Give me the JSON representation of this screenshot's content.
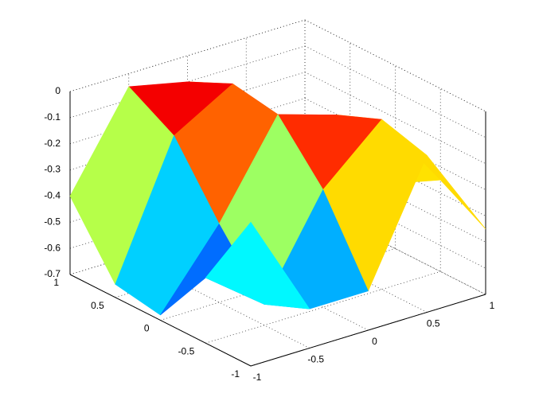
{
  "chart_data": {
    "type": "surface",
    "x": [
      -1,
      -0.5,
      0,
      0.5,
      1
    ],
    "y": [
      1,
      0.5,
      0,
      -0.5,
      -1
    ],
    "z": [
      [
        -0.4,
        -0.05,
        -0.1,
        -0.45,
        -0.65
      ],
      [
        -0.65,
        -0.15,
        -0.02,
        -0.3,
        -0.6
      ],
      [
        -0.68,
        -0.4,
        -0.05,
        -0.12,
        -0.45
      ],
      [
        -0.45,
        -0.62,
        -0.25,
        -0.05,
        -0.35
      ],
      [
        -0.15,
        -0.55,
        -0.55,
        -0.1,
        -0.45
      ]
    ],
    "xlim": [
      -1,
      1
    ],
    "ylim": [
      -1,
      1
    ],
    "zlim": [
      -0.7,
      0
    ],
    "xticks": [
      -1,
      -0.5,
      0,
      0.5,
      1
    ],
    "yticks": [
      -1,
      -0.5,
      0,
      0.5,
      1
    ],
    "zticks": [
      -0.7,
      -0.6,
      -0.5,
      -0.4,
      -0.3,
      -0.2,
      -0.1,
      0
    ],
    "grid": true,
    "colormap": "jet"
  }
}
